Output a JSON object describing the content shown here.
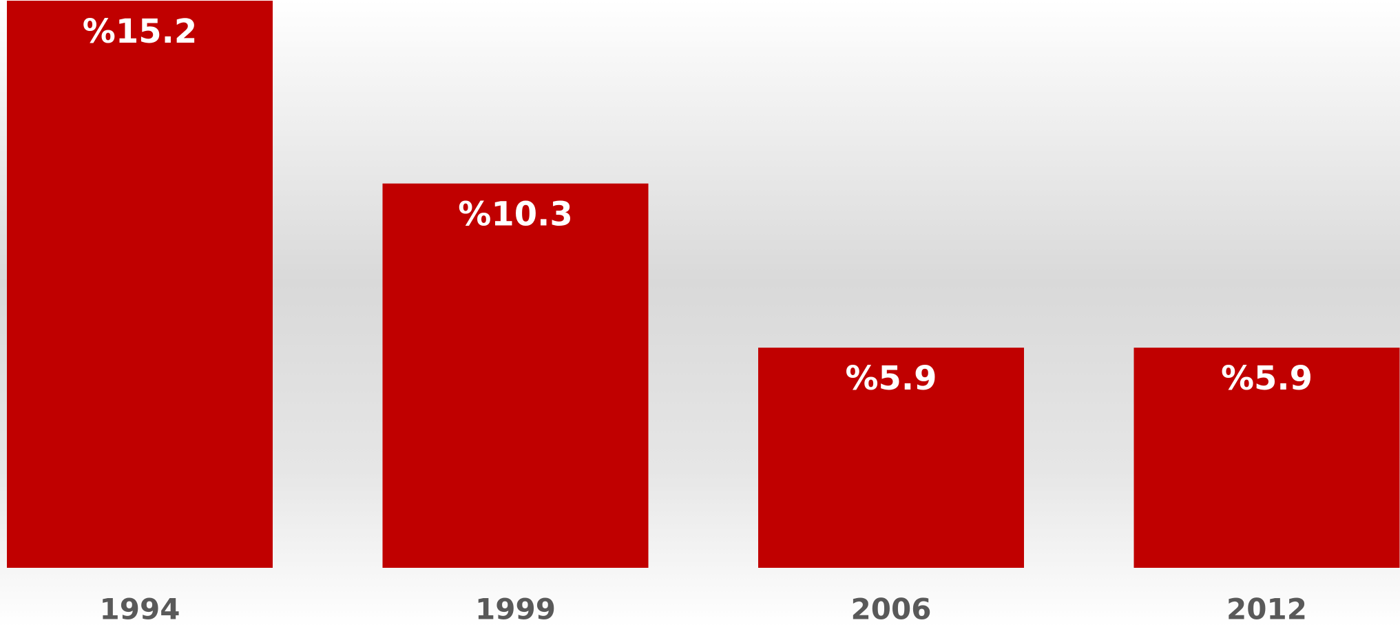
{
  "chart_data": {
    "type": "bar",
    "categories": [
      "1994",
      "1999",
      "2006",
      "2012"
    ],
    "values": [
      15.2,
      10.3,
      5.9,
      5.9
    ],
    "value_labels": [
      "%15.2",
      "%10.3",
      "%5.9",
      "%5.9"
    ],
    "color": "#c00000",
    "ylim": [
      0,
      15.2
    ]
  }
}
